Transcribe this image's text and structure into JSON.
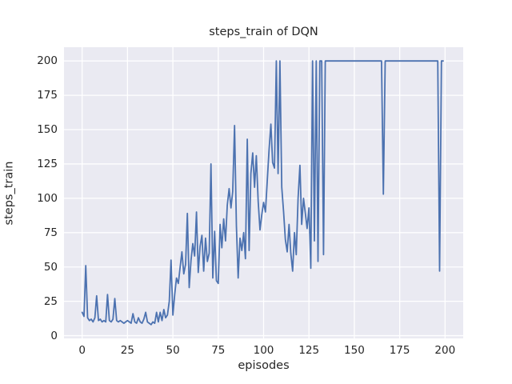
{
  "title": "steps_train of DQN",
  "chart_data": {
    "type": "line",
    "title": "steps_train of DQN",
    "xlabel": "episodes",
    "ylabel": "steps_train",
    "x_ticks": [
      0,
      25,
      50,
      75,
      100,
      125,
      150,
      175,
      200
    ],
    "y_ticks": [
      0,
      25,
      50,
      75,
      100,
      125,
      150,
      175,
      200
    ],
    "xlim": [
      -10,
      210
    ],
    "ylim": [
      -2,
      210
    ],
    "grid": true,
    "legend": false,
    "colors": {
      "line": "#4c72b0",
      "plot_background": "#eaeaf2",
      "grid": "#ffffff",
      "text": "#262626",
      "figure_background": "#ffffff"
    },
    "series": [
      {
        "name": "steps_train",
        "x_is_index": true,
        "values": [
          17,
          14,
          51,
          13,
          11,
          12,
          10,
          13,
          29,
          11,
          12,
          10,
          11,
          10,
          30,
          11,
          10,
          12,
          27,
          11,
          10,
          11,
          10,
          9,
          10,
          11,
          10,
          9,
          16,
          10,
          9,
          13,
          10,
          9,
          12,
          17,
          10,
          9,
          8,
          10,
          9,
          17,
          10,
          17,
          11,
          19,
          13,
          15,
          25,
          55,
          15,
          30,
          42,
          38,
          50,
          61,
          45,
          52,
          89,
          35,
          55,
          67,
          58,
          90,
          46,
          65,
          73,
          47,
          71,
          54,
          60,
          125,
          42,
          76,
          40,
          38,
          81,
          64,
          85,
          69,
          95,
          107,
          93,
          105,
          153,
          80,
          42,
          71,
          62,
          75,
          56,
          143,
          62,
          118,
          133,
          108,
          131,
          98,
          77,
          88,
          97,
          90,
          112,
          135,
          154,
          126,
          122,
          200,
          118,
          200,
          108,
          90,
          70,
          61,
          81,
          60,
          47,
          75,
          59,
          100,
          124,
          81,
          100,
          89,
          78,
          93,
          49,
          200,
          69,
          200,
          54,
          200,
          200,
          59,
          200,
          200,
          200,
          200,
          200,
          200,
          200,
          200,
          200,
          200,
          200,
          200,
          200,
          200,
          200,
          200,
          200,
          200,
          200,
          200,
          200,
          200,
          200,
          200,
          200,
          200,
          200,
          200,
          200,
          200,
          200,
          200,
          103,
          200,
          200,
          200,
          200,
          200,
          200,
          200,
          200,
          200,
          200,
          200,
          200,
          200,
          200,
          200,
          200,
          200,
          200,
          200,
          200,
          200,
          200,
          200,
          200,
          200,
          200,
          200,
          200,
          200,
          200,
          47,
          200,
          200
        ]
      }
    ]
  }
}
